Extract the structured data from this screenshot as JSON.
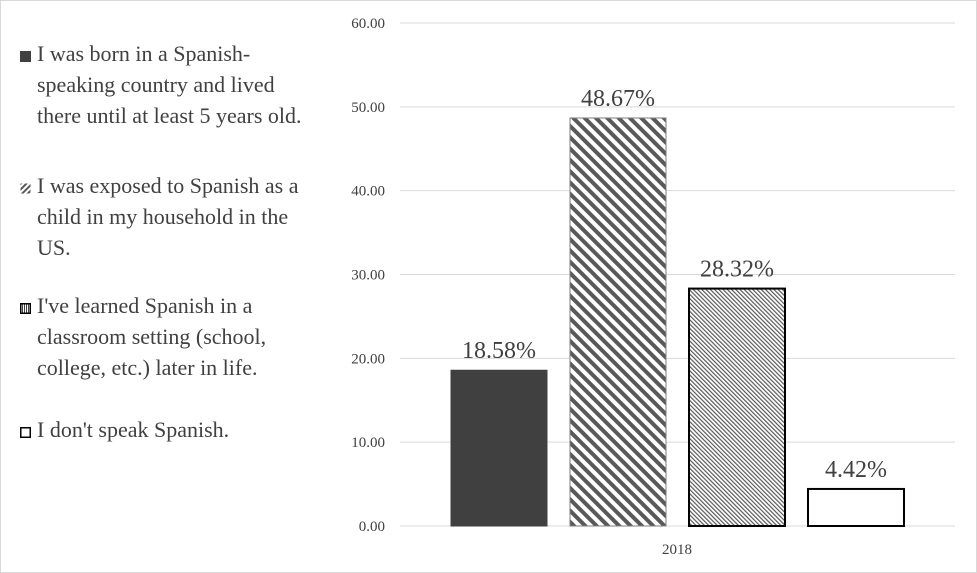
{
  "chart_data": {
    "type": "bar",
    "categories": [
      "2018"
    ],
    "series": [
      {
        "name": "I was born in a Spanish-speaking country and lived there until at least 5 years old.",
        "values": [
          18.58
        ],
        "label": "18.58%",
        "fill": "solid-dark"
      },
      {
        "name": "I was exposed to Spanish as a child in my household in the US.",
        "values": [
          48.67
        ],
        "label": "48.67%",
        "fill": "wide-diagonal"
      },
      {
        "name": "I've learned Spanish in a classroom setting (school, college, etc.) later in life.",
        "values": [
          28.32
        ],
        "label": "28.32%",
        "fill": "fine-diagonal"
      },
      {
        "name": "I don't speak Spanish.",
        "values": [
          4.42
        ],
        "label": "4.42%",
        "fill": "white"
      }
    ],
    "yticks": [
      "0.00",
      "10.00",
      "20.00",
      "30.00",
      "40.00",
      "50.00",
      "60.00"
    ],
    "ylim": [
      0,
      60
    ],
    "grid": true,
    "legend_position": "left",
    "title": "",
    "xlabel": "",
    "ylabel": ""
  },
  "colors": {
    "dark_bar": "#404040",
    "pattern_stroke": "#595959",
    "grid": "#d9d9d9",
    "text": "#404040"
  }
}
